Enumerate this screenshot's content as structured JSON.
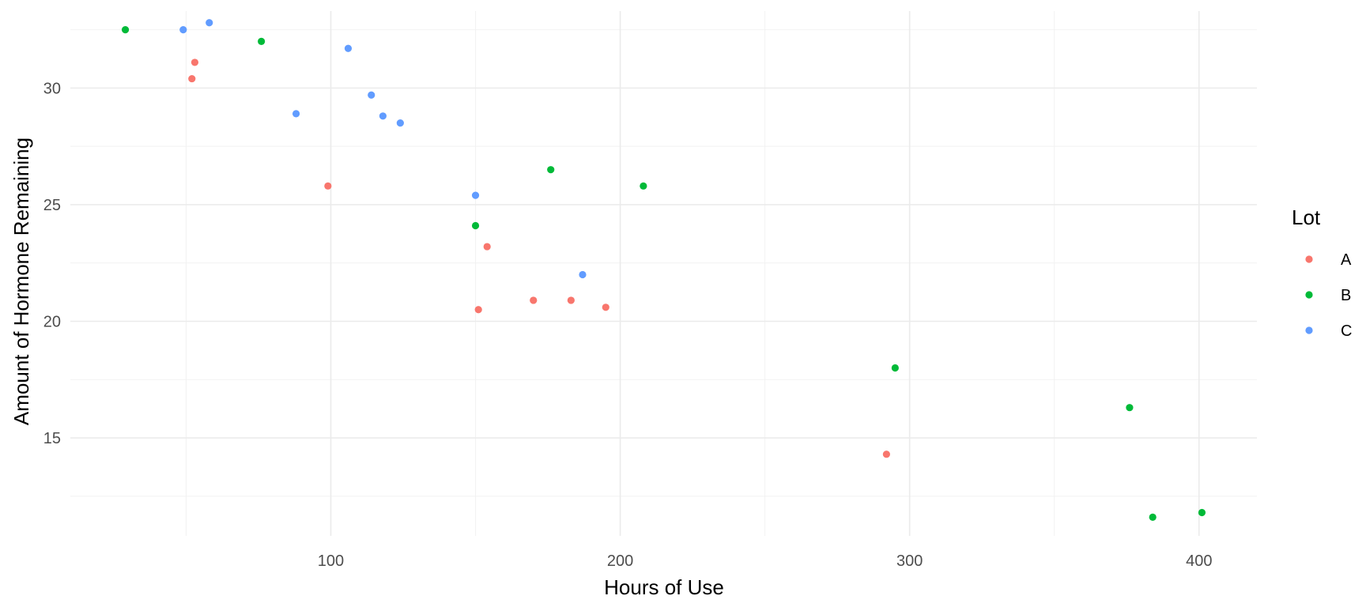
{
  "chart_data": {
    "type": "scatter",
    "title": "",
    "xlabel": "Hours of Use",
    "ylabel": "Amount of Hormone Remaining",
    "xlim": [
      10,
      420
    ],
    "ylim": [
      10.8,
      33.3
    ],
    "x_ticks": [
      100,
      200,
      300,
      400
    ],
    "y_ticks": [
      15,
      20,
      25,
      30
    ],
    "grid": true,
    "legend": {
      "title": "Lot",
      "position": "right"
    },
    "series": [
      {
        "name": "A",
        "color": "#F8766D",
        "points": [
          [
            52,
            30.4
          ],
          [
            53,
            31.1
          ],
          [
            99,
            25.8
          ],
          [
            151,
            20.5
          ],
          [
            154,
            23.2
          ],
          [
            170,
            20.9
          ],
          [
            183,
            20.9
          ],
          [
            195,
            20.6
          ],
          [
            292,
            14.3
          ]
        ]
      },
      {
        "name": "B",
        "color": "#00BA38",
        "points": [
          [
            29,
            32.5
          ],
          [
            76,
            32.0
          ],
          [
            150,
            24.1
          ],
          [
            176,
            26.5
          ],
          [
            208,
            25.8
          ],
          [
            295,
            18.0
          ],
          [
            376,
            16.3
          ],
          [
            384,
            11.6
          ],
          [
            401,
            11.8
          ]
        ]
      },
      {
        "name": "C",
        "color": "#619CFF",
        "points": [
          [
            49,
            32.5
          ],
          [
            58,
            32.8
          ],
          [
            88,
            28.9
          ],
          [
            106,
            31.7
          ],
          [
            114,
            29.7
          ],
          [
            118,
            28.8
          ],
          [
            124,
            28.5
          ],
          [
            150,
            25.4
          ],
          [
            187,
            22.0
          ]
        ]
      }
    ]
  }
}
